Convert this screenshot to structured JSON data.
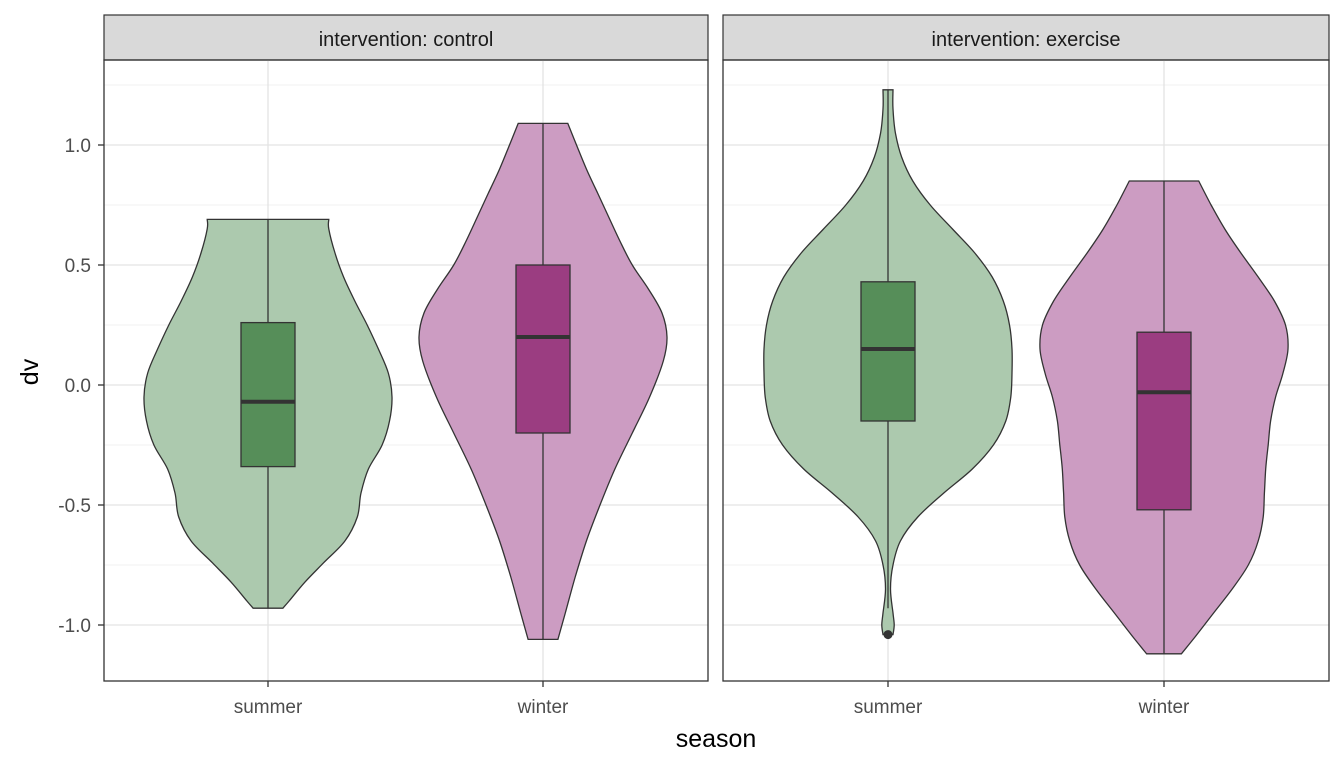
{
  "chart_data": {
    "type": "violin",
    "xlabel": "season",
    "ylabel": "dv",
    "ylim": [
      -1.25,
      1.35
    ],
    "y_ticks": [
      1.0,
      0.5,
      0.0,
      -0.5,
      -1.0
    ],
    "y_tick_labels": [
      "1.0",
      "0.5",
      "0.0",
      "-0.5",
      "-1.0"
    ],
    "categories": [
      "summer",
      "winter"
    ],
    "fill_colors": {
      "summer": {
        "violin": "#acc9ae",
        "box": "#568e59"
      },
      "winter": {
        "violin": "#cc9cc2",
        "box": "#9b3d81"
      }
    },
    "grid": true,
    "legend": "none",
    "panels": [
      {
        "strip_label": "intervention: control",
        "groups": [
          {
            "category": "summer",
            "violin_range": [
              -0.93,
              0.69
            ],
            "violin_profile": [
              [
                -0.93,
                0.12
              ],
              [
                -0.9,
                0.17
              ],
              [
                -0.82,
                0.3
              ],
              [
                -0.74,
                0.45
              ],
              [
                -0.65,
                0.62
              ],
              [
                -0.55,
                0.72
              ],
              [
                -0.45,
                0.75
              ],
              [
                -0.35,
                0.81
              ],
              [
                -0.25,
                0.92
              ],
              [
                -0.15,
                0.98
              ],
              [
                -0.05,
                1.0
              ],
              [
                0.05,
                0.97
              ],
              [
                0.15,
                0.89
              ],
              [
                0.25,
                0.8
              ],
              [
                0.35,
                0.7
              ],
              [
                0.45,
                0.61
              ],
              [
                0.55,
                0.54
              ],
              [
                0.65,
                0.49
              ],
              [
                0.69,
                0.49
              ]
            ],
            "box": {
              "lower": -0.34,
              "q1": -0.34,
              "median": -0.07,
              "q3": 0.26,
              "upper": 0.69,
              "min": -0.93
            },
            "whisker_min": -0.93,
            "whisker_max": 0.69,
            "outliers": []
          },
          {
            "category": "winter",
            "violin_range": [
              -1.06,
              1.09
            ],
            "violin_profile": [
              [
                -1.06,
                0.12
              ],
              [
                -0.95,
                0.18
              ],
              [
                -0.8,
                0.26
              ],
              [
                -0.65,
                0.35
              ],
              [
                -0.5,
                0.46
              ],
              [
                -0.35,
                0.58
              ],
              [
                -0.2,
                0.72
              ],
              [
                -0.05,
                0.86
              ],
              [
                0.1,
                0.97
              ],
              [
                0.2,
                1.0
              ],
              [
                0.3,
                0.96
              ],
              [
                0.4,
                0.85
              ],
              [
                0.5,
                0.72
              ],
              [
                0.6,
                0.62
              ],
              [
                0.7,
                0.53
              ],
              [
                0.8,
                0.44
              ],
              [
                0.9,
                0.35
              ],
              [
                1.0,
                0.27
              ],
              [
                1.09,
                0.2
              ]
            ],
            "box": {
              "q1": -0.2,
              "median": 0.2,
              "q3": 0.5
            },
            "whisker_min": -1.06,
            "whisker_max": 1.09,
            "outliers": []
          }
        ]
      },
      {
        "strip_label": "intervention: exercise",
        "groups": [
          {
            "category": "summer",
            "violin_range": [
              -1.04,
              1.23
            ],
            "violin_profile": [
              [
                -1.04,
                0.04
              ],
              [
                -1.0,
                0.05
              ],
              [
                -0.95,
                0.04
              ],
              [
                -0.85,
                0.02
              ],
              [
                -0.75,
                0.04
              ],
              [
                -0.65,
                0.1
              ],
              [
                -0.55,
                0.24
              ],
              [
                -0.45,
                0.45
              ],
              [
                -0.35,
                0.68
              ],
              [
                -0.25,
                0.85
              ],
              [
                -0.15,
                0.95
              ],
              [
                -0.05,
                0.99
              ],
              [
                0.05,
                1.0
              ],
              [
                0.15,
                1.0
              ],
              [
                0.25,
                0.98
              ],
              [
                0.35,
                0.93
              ],
              [
                0.45,
                0.84
              ],
              [
                0.55,
                0.7
              ],
              [
                0.65,
                0.52
              ],
              [
                0.75,
                0.34
              ],
              [
                0.85,
                0.2
              ],
              [
                0.95,
                0.11
              ],
              [
                1.05,
                0.06
              ],
              [
                1.15,
                0.04
              ],
              [
                1.23,
                0.04
              ]
            ],
            "box": {
              "q1": -0.15,
              "median": 0.15,
              "q3": 0.43
            },
            "whisker_min": -0.93,
            "whisker_max": 1.23,
            "outliers": [
              -1.04
            ]
          },
          {
            "category": "winter",
            "violin_range": [
              -1.12,
              0.85
            ],
            "violin_profile": [
              [
                -1.12,
                0.14
              ],
              [
                -1.05,
                0.25
              ],
              [
                -0.95,
                0.4
              ],
              [
                -0.85,
                0.55
              ],
              [
                -0.75,
                0.68
              ],
              [
                -0.65,
                0.76
              ],
              [
                -0.55,
                0.8
              ],
              [
                -0.45,
                0.81
              ],
              [
                -0.35,
                0.82
              ],
              [
                -0.25,
                0.84
              ],
              [
                -0.15,
                0.86
              ],
              [
                -0.05,
                0.9
              ],
              [
                0.05,
                0.96
              ],
              [
                0.15,
                1.0
              ],
              [
                0.25,
                0.98
              ],
              [
                0.35,
                0.89
              ],
              [
                0.45,
                0.76
              ],
              [
                0.55,
                0.62
              ],
              [
                0.65,
                0.49
              ],
              [
                0.75,
                0.38
              ],
              [
                0.85,
                0.28
              ]
            ],
            "box": {
              "q1": -0.52,
              "median": -0.03,
              "q3": 0.22
            },
            "whisker_min": -1.12,
            "whisker_max": 0.85,
            "outliers": []
          }
        ]
      }
    ]
  }
}
